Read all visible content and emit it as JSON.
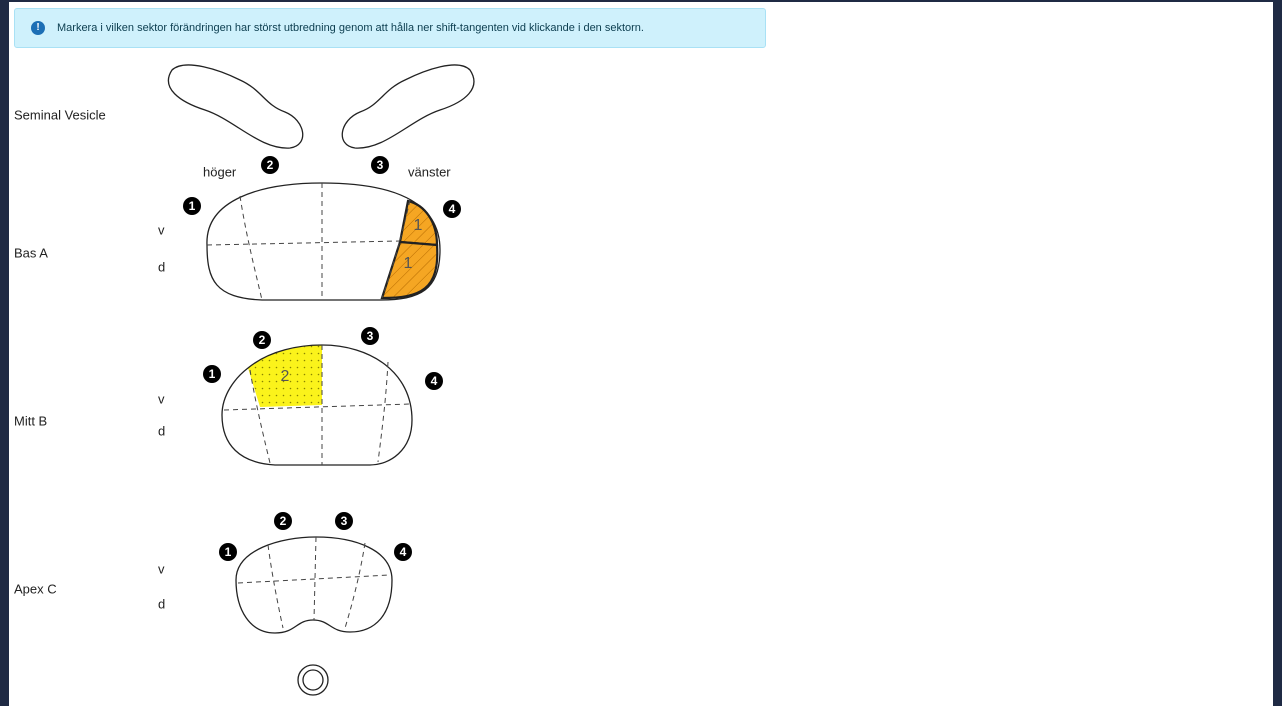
{
  "banner": {
    "text": "Markera i vilken sektor förändringen har störst utbredning genom att hålla ner shift-tangenten vid klickande i den sektorn."
  },
  "seminal_vesicle": "Seminal Vesicle",
  "side_labels": {
    "right": "höger",
    "left": "vänster"
  },
  "sections": [
    {
      "name": "Bas A",
      "markers": [
        "1",
        "2",
        "3",
        "4"
      ],
      "ventral": "v",
      "dorsal": "d",
      "sector_labels": [
        "1",
        "1"
      ]
    },
    {
      "name": "Mitt B",
      "markers": [
        "1",
        "2",
        "3",
        "4"
      ],
      "ventral": "v",
      "dorsal": "d",
      "sector_labels": [
        "2"
      ]
    },
    {
      "name": "Apex C",
      "markers": [
        "1",
        "2",
        "3",
        "4"
      ],
      "ventral": "v",
      "dorsal": "d",
      "sector_labels": []
    }
  ]
}
